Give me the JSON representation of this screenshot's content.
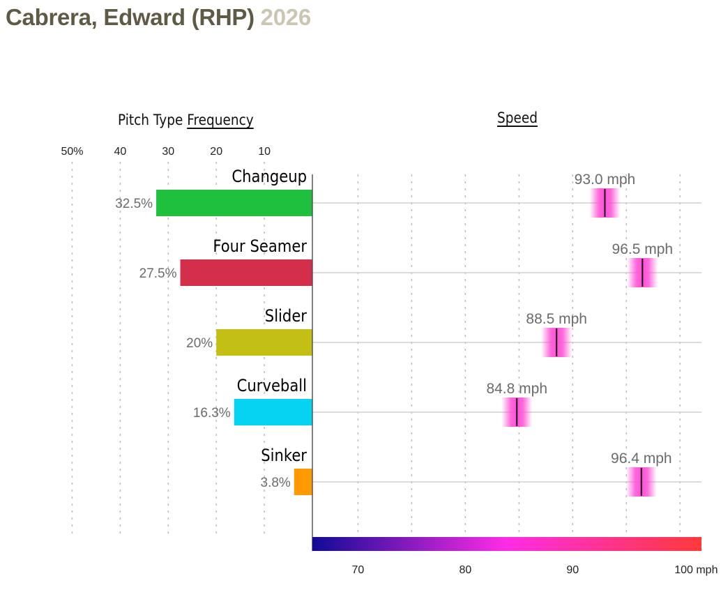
{
  "header": {
    "player_name": "Cabrera, Edward (RHP)",
    "season": "2026"
  },
  "frequency_heading": {
    "prefix": "Pitch Type ",
    "link": "Frequency"
  },
  "speed_heading": {
    "link": "Speed"
  },
  "colors": {
    "title": "#5e5a45",
    "season": "#cbc5b3",
    "changeup": "#1ec03d",
    "four_seamer": "#d32f4b",
    "slider": "#c4bf14",
    "curveball": "#05d3ef",
    "sinker": "#fe9a00",
    "speed_marker": "#ff4fd6",
    "grid": "#bbbbbb"
  },
  "chart_data": [
    {
      "type": "bar",
      "orientation": "horizontal",
      "title": "Pitch Type Frequency",
      "categories": [
        "Changeup",
        "Four Seamer",
        "Slider",
        "Curveball",
        "Sinker"
      ],
      "values": [
        32.5,
        27.5,
        20,
        16.3,
        3.8
      ],
      "value_labels": [
        "32.5%",
        "27.5%",
        "20%",
        "16.3%",
        "3.8%"
      ],
      "xlim": [
        0,
        50
      ],
      "x_direction": "reversed",
      "tick_values": [
        50,
        40,
        30,
        20,
        10
      ],
      "tick_labels": [
        "50%",
        "40",
        "30",
        "20",
        "10"
      ],
      "grid": true
    },
    {
      "type": "scatter",
      "title": "Speed",
      "categories": [
        "Changeup",
        "Four Seamer",
        "Slider",
        "Curveball",
        "Sinker"
      ],
      "values": [
        93.0,
        96.5,
        88.5,
        84.8,
        96.4
      ],
      "value_labels": [
        "93.0 mph",
        "96.5 mph",
        "88.5 mph",
        "84.8 mph",
        "96.4 mph"
      ],
      "xlim": [
        65.75,
        102
      ],
      "tick_values": [
        70,
        80,
        90,
        100
      ],
      "tick_labels": [
        "70",
        "80",
        "90",
        "100 mph"
      ],
      "minor_grid_values": [
        75,
        85,
        95
      ],
      "color_scale": {
        "domain": [
          65.75,
          102
        ],
        "stops": [
          "#110a96",
          "#ff2ce6",
          "#ff3a3a"
        ]
      },
      "grid": true
    }
  ]
}
